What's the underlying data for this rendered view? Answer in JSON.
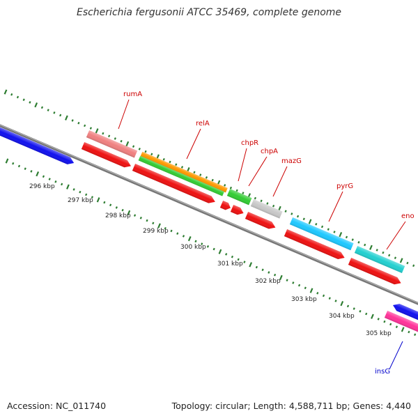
{
  "title": "Escherichia fergusonii ATCC 35469, complete genome",
  "footer": {
    "accession": "Accession: NC_011740",
    "summary": "Topology: circular; Length: 4,588,711 bp; Genes: 4,440"
  },
  "scale_labels": [
    "296 kbp",
    "297 kbp",
    "298 kbp",
    "299 kbp",
    "300 kbp",
    "301 kbp",
    "302 kbp",
    "303 kbp",
    "304 kbp",
    "305 kbp"
  ],
  "gene_labels": [
    {
      "name": "rumA",
      "color": "#cc0000"
    },
    {
      "name": "relA",
      "color": "#cc0000"
    },
    {
      "name": "chpR",
      "color": "#cc0000"
    },
    {
      "name": "chpA",
      "color": "#cc0000"
    },
    {
      "name": "mazG",
      "color": "#cc0000"
    },
    {
      "name": "pyrG",
      "color": "#cc0000"
    },
    {
      "name": "eno",
      "color": "#cc0000"
    },
    {
      "name": "insG",
      "color": "#0000cc"
    }
  ],
  "colors": {
    "backbone": "#888888",
    "tick": "#2e7d32",
    "cds_red": "#ee1111",
    "salmon": "#f08080",
    "orange": "#ff9900",
    "green": "#33cc33",
    "gray": "#c8c8c8",
    "sky": "#1ec8ff",
    "teal": "#22d0d0",
    "blue": "#1111ee",
    "magenta": "#ff3399"
  }
}
